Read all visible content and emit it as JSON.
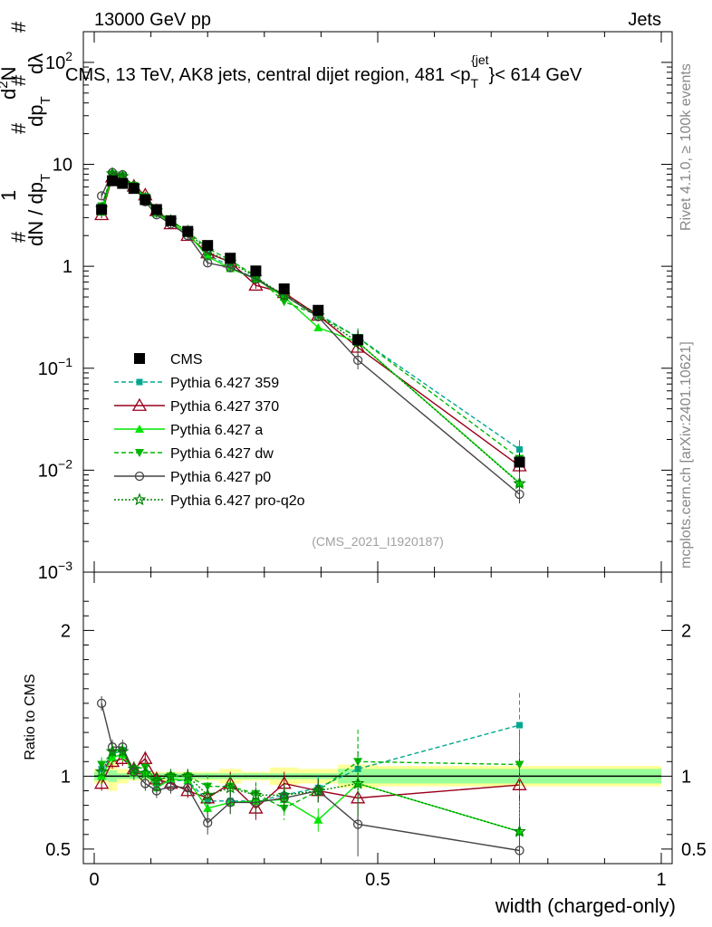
{
  "header": {
    "energy": "13000 GeV pp",
    "category": "Jets",
    "title": "CMS, 13 TeV, AK8 jets, central dijet region, 481 <p",
    "title_sub": "T",
    "title_sup": "{jet",
    "title_end": "}< 614 GeV"
  },
  "side": {
    "rivet": "Rivet 4.1.0, ≥ 100k events",
    "mcplots": "mcplots.cern.ch [arXiv:2401.10621]"
  },
  "watermark": "(CMS_2021_I1920187)",
  "colors": {
    "cms": "#000000",
    "p359": "#00a88f",
    "p370": "#99001c",
    "pa": "#00e600",
    "pdw": "#00b400",
    "pp0": "#444444",
    "pq2o": "#008000",
    "band_outer": "#ffff99",
    "band_inner": "#99ff99"
  },
  "chart_data": [
    {
      "type": "line",
      "panel": "main",
      "yscale": "log",
      "xlabel": "width (charged-only)",
      "ylabel_parts": [
        "1",
        "dN / dp",
        "T",
        "#",
        "d",
        "2",
        "N",
        "dp",
        "T",
        "#",
        "dλ",
        "#",
        "#"
      ],
      "xlim": [
        0,
        1
      ],
      "ylim": [
        0.001,
        200
      ],
      "y_ticks": [
        {
          "v": 0.001,
          "b": "10",
          "e": "−3"
        },
        {
          "v": 0.01,
          "b": "10",
          "e": "−2"
        },
        {
          "v": 0.1,
          "b": "10",
          "e": "−1"
        },
        {
          "v": 1,
          "b": "1",
          "e": ""
        },
        {
          "v": 10,
          "b": "10",
          "e": ""
        },
        {
          "v": 100,
          "b": "10",
          "e": "2"
        }
      ],
      "x_ticks": [
        {
          "v": 0,
          "label": "0"
        },
        {
          "v": 0.5,
          "label": "0.5"
        },
        {
          "v": 1,
          "label": "1"
        }
      ],
      "x": [
        0.013,
        0.032,
        0.05,
        0.07,
        0.09,
        0.11,
        0.135,
        0.165,
        0.2,
        0.24,
        0.285,
        0.335,
        0.395,
        0.465,
        0.75
      ],
      "series": [
        {
          "name": "CMS",
          "key": "cms",
          "style": "data",
          "marker": "square",
          "dash": "",
          "values": [
            3.6,
            6.9,
            6.5,
            5.8,
            4.5,
            3.6,
            2.8,
            2.2,
            1.6,
            1.2,
            0.9,
            0.6,
            0.37,
            0.19,
            0.012
          ]
        },
        {
          "name": "Pythia 6.427 359",
          "key": "p359",
          "marker": "square-small",
          "dash": "5,3",
          "values": [
            3.8,
            8.0,
            7.7,
            6.0,
            4.6,
            3.4,
            2.7,
            2.1,
            1.3,
            1.0,
            0.75,
            0.52,
            0.34,
            0.2,
            0.016
          ]
        },
        {
          "name": "Pythia 6.427 370",
          "key": "p370",
          "marker": "triangle-open",
          "dash": "",
          "values": [
            3.2,
            7.5,
            7.3,
            6.1,
            5.0,
            3.5,
            2.6,
            2.0,
            1.35,
            1.1,
            0.65,
            0.55,
            0.33,
            0.16,
            0.011
          ]
        },
        {
          "name": "Pythia 6.427 a",
          "key": "pa",
          "marker": "triangle",
          "dash": "",
          "values": [
            3.4,
            7.8,
            7.6,
            5.9,
            4.7,
            3.3,
            2.7,
            2.1,
            1.25,
            0.95,
            0.75,
            0.5,
            0.25,
            0.18,
            0.0075
          ]
        },
        {
          "name": "Pythia 6.427 dw",
          "key": "pdw",
          "marker": "triangle-down",
          "dash": "5,3",
          "values": [
            3.9,
            8.0,
            7.7,
            6.2,
            4.8,
            3.5,
            2.8,
            2.2,
            1.5,
            1.15,
            0.8,
            0.45,
            0.33,
            0.2,
            0.013
          ]
        },
        {
          "name": "Pythia 6.427 p0",
          "key": "pp0",
          "marker": "circle-open",
          "dash": "",
          "values": [
            4.9,
            8.3,
            7.9,
            6.0,
            4.3,
            3.2,
            2.6,
            2.0,
            1.08,
            0.97,
            0.75,
            0.52,
            0.32,
            0.12,
            0.0058
          ]
        },
        {
          "name": "Pythia 6.427 pro-q2o",
          "key": "pq2o",
          "marker": "star",
          "dash": "2,2",
          "values": [
            3.7,
            8.1,
            7.6,
            6.1,
            4.6,
            3.5,
            2.8,
            2.2,
            1.4,
            1.1,
            0.78,
            0.52,
            0.33,
            0.18,
            0.0074
          ]
        }
      ]
    },
    {
      "type": "line",
      "panel": "ratio",
      "ylabel": "Ratio to CMS",
      "xlim": [
        0,
        1
      ],
      "ylim": [
        0.4,
        2.4
      ],
      "y_ticks": [
        {
          "v": 0.5,
          "label": "0.5"
        },
        {
          "v": 1,
          "label": "1"
        },
        {
          "v": 2,
          "label": "2"
        }
      ],
      "x_ticks": [
        {
          "v": 0,
          "label": "0"
        },
        {
          "v": 0.5,
          "label": "0.5"
        },
        {
          "v": 1,
          "label": "1"
        }
      ],
      "band_edges": [
        0,
        0.025,
        0.04,
        0.06,
        0.08,
        0.1,
        0.12,
        0.15,
        0.18,
        0.22,
        0.26,
        0.31,
        0.36,
        0.43,
        0.5,
        1.0
      ],
      "band_inner": [
        0.03,
        0.04,
        0.02,
        0.02,
        0.02,
        0.02,
        0.02,
        0.02,
        0.02,
        0.02,
        0.02,
        0.02,
        0.02,
        0.05,
        0.05
      ],
      "band_outer": [
        0.05,
        0.1,
        0.05,
        0.03,
        0.03,
        0.03,
        0.03,
        0.03,
        0.03,
        0.05,
        0.03,
        0.06,
        0.05,
        0.08,
        0.07
      ],
      "x": [
        0.013,
        0.032,
        0.05,
        0.07,
        0.09,
        0.11,
        0.135,
        0.165,
        0.2,
        0.24,
        0.285,
        0.335,
        0.395,
        0.465,
        0.75
      ],
      "series": [
        {
          "name": "Pythia 6.427 359",
          "key": "p359",
          "marker": "square-small",
          "dash": "5,3",
          "values": [
            1.05,
            1.15,
            1.18,
            1.03,
            1.02,
            0.95,
            0.97,
            0.97,
            0.83,
            0.83,
            0.83,
            0.87,
            0.92,
            1.05,
            1.35
          ]
        },
        {
          "name": "Pythia 6.427 370",
          "key": "p370",
          "marker": "triangle-open",
          "dash": "",
          "values": [
            0.95,
            1.1,
            1.12,
            1.05,
            1.12,
            0.98,
            0.95,
            0.9,
            0.85,
            0.95,
            0.78,
            0.95,
            0.9,
            0.85,
            0.94
          ]
        },
        {
          "name": "Pythia 6.427 a",
          "key": "pa",
          "marker": "triangle",
          "dash": "",
          "values": [
            1.0,
            1.13,
            1.15,
            1.02,
            1.03,
            0.92,
            0.98,
            0.97,
            0.78,
            0.82,
            0.83,
            0.84,
            0.7,
            0.95,
            0.62
          ]
        },
        {
          "name": "Pythia 6.427 dw",
          "key": "pdw",
          "marker": "triangle-down",
          "dash": "5,3",
          "values": [
            1.08,
            1.16,
            1.17,
            1.05,
            1.06,
            0.97,
            1.0,
            1.0,
            0.93,
            0.93,
            0.88,
            0.78,
            0.9,
            1.1,
            1.08
          ]
        },
        {
          "name": "Pythia 6.427 p0",
          "key": "pp0",
          "marker": "circle-open",
          "dash": "",
          "values": [
            1.5,
            1.2,
            1.2,
            1.03,
            0.95,
            0.9,
            0.93,
            0.92,
            0.68,
            0.82,
            0.82,
            0.85,
            0.9,
            0.67,
            0.49
          ]
        },
        {
          "name": "Pythia 6.427 pro-q2o",
          "key": "pq2o",
          "marker": "star",
          "dash": "2,2",
          "values": [
            1.03,
            1.17,
            1.17,
            1.05,
            1.02,
            0.97,
            1.0,
            1.0,
            0.87,
            0.92,
            0.87,
            0.87,
            0.9,
            0.95,
            0.62
          ]
        }
      ]
    }
  ]
}
